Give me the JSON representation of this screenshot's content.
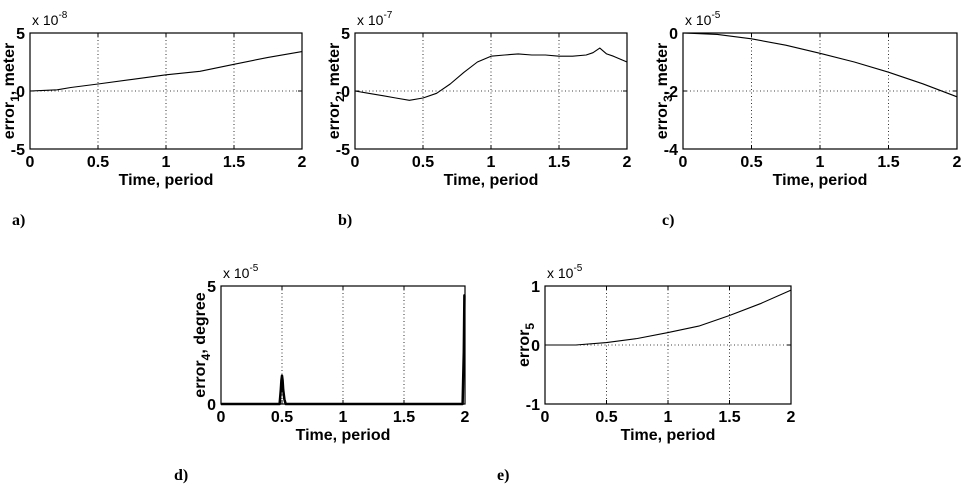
{
  "figure": {
    "panel_tags": [
      "a)",
      "b)",
      "c)",
      "d)",
      "e)"
    ]
  },
  "chart_data": [
    {
      "id": "a",
      "type": "line",
      "xlabel": "Time, period",
      "ylabel": "error",
      "ylabel_sub": "1",
      "ylabel_rest": ", meter",
      "multiplier_base": "x 10",
      "multiplier_exp": "-8",
      "xlim": [
        0,
        2
      ],
      "ylim": [
        -5,
        5
      ],
      "xticks": [
        0,
        0.5,
        1,
        1.5,
        2
      ],
      "xtick_labels": [
        "0",
        "0.5",
        "1",
        "1.5",
        "2"
      ],
      "yticks": [
        -5,
        0,
        5
      ],
      "ytick_labels": [
        "-5",
        "0",
        "5"
      ],
      "grid": true,
      "series": [
        {
          "x": [
            0,
            0.1,
            0.2,
            0.3,
            0.5,
            0.75,
            1.0,
            1.25,
            1.5,
            1.75,
            2.0
          ],
          "y": [
            0,
            0.05,
            0.1,
            0.3,
            0.6,
            1.0,
            1.4,
            1.7,
            2.3,
            2.9,
            3.4
          ]
        }
      ]
    },
    {
      "id": "b",
      "type": "line",
      "xlabel": "Time, period",
      "ylabel": "error",
      "ylabel_sub": "2",
      "ylabel_rest": ", meter",
      "multiplier_base": "x 10",
      "multiplier_exp": "-7",
      "xlim": [
        0,
        2
      ],
      "ylim": [
        -5,
        5
      ],
      "xticks": [
        0,
        0.5,
        1,
        1.5,
        2
      ],
      "xtick_labels": [
        "0",
        "0.5",
        "1",
        "1.5",
        "2"
      ],
      "yticks": [
        -5,
        0,
        5
      ],
      "ytick_labels": [
        "-5",
        "0",
        "5"
      ],
      "grid": true,
      "series": [
        {
          "x": [
            0,
            0.1,
            0.2,
            0.3,
            0.4,
            0.5,
            0.6,
            0.7,
            0.8,
            0.9,
            1.0,
            1.1,
            1.2,
            1.3,
            1.4,
            1.5,
            1.6,
            1.7,
            1.75,
            1.8,
            1.85,
            1.9,
            2.0
          ],
          "y": [
            0,
            -0.2,
            -0.4,
            -0.6,
            -0.8,
            -0.6,
            -0.2,
            0.6,
            1.6,
            2.5,
            3.0,
            3.1,
            3.2,
            3.1,
            3.1,
            3.0,
            3.0,
            3.1,
            3.3,
            3.7,
            3.2,
            3.0,
            2.5
          ]
        }
      ]
    },
    {
      "id": "c",
      "type": "line",
      "xlabel": "Time, period",
      "ylabel": "error",
      "ylabel_sub": "3",
      "ylabel_rest": ", meter",
      "multiplier_base": "x 10",
      "multiplier_exp": "-5",
      "xlim": [
        0,
        2
      ],
      "ylim": [
        -4,
        0
      ],
      "xticks": [
        0,
        0.5,
        1,
        1.5,
        2
      ],
      "xtick_labels": [
        "0",
        "0.5",
        "1",
        "1.5",
        "2"
      ],
      "yticks": [
        -4,
        -2,
        0
      ],
      "ytick_labels": [
        "-4",
        "-2",
        "0"
      ],
      "grid": true,
      "series": [
        {
          "x": [
            0,
            0.25,
            0.5,
            0.75,
            1.0,
            1.25,
            1.5,
            1.75,
            2.0
          ],
          "y": [
            0,
            -0.05,
            -0.2,
            -0.42,
            -0.7,
            -1.0,
            -1.35,
            -1.75,
            -2.2
          ]
        }
      ]
    },
    {
      "id": "d",
      "type": "line",
      "xlabel": "Time, period",
      "ylabel": "error",
      "ylabel_sub": "4",
      "ylabel_rest": ", degree",
      "multiplier_base": "x 10",
      "multiplier_exp": "-5",
      "xlim": [
        0,
        2
      ],
      "ylim": [
        0,
        5
      ],
      "xticks": [
        0,
        0.5,
        1,
        1.5,
        2
      ],
      "xtick_labels": [
        "0",
        "0.5",
        "1",
        "1.5",
        "2"
      ],
      "yticks": [
        0,
        5
      ],
      "ytick_labels": [
        "0",
        "5"
      ],
      "grid": true,
      "series": [
        {
          "x": [
            0,
            0.48,
            0.49,
            0.495,
            0.5,
            0.505,
            0.51,
            0.52,
            0.53,
            1.98,
            1.99,
            1.995,
            2.0
          ],
          "y": [
            0,
            0,
            0.6,
            1.0,
            1.2,
            1.0,
            0.6,
            0.2,
            0,
            0,
            2.2,
            4.6,
            4.6
          ]
        }
      ]
    },
    {
      "id": "e",
      "type": "line",
      "xlabel": "Time, period",
      "ylabel": "error",
      "ylabel_sub": "5",
      "ylabel_rest": "",
      "multiplier_base": "x 10",
      "multiplier_exp": "-5",
      "xlim": [
        0,
        2
      ],
      "ylim": [
        -1,
        1
      ],
      "xticks": [
        0,
        0.5,
        1,
        1.5,
        2
      ],
      "xtick_labels": [
        "0",
        "0.5",
        "1",
        "1.5",
        "2"
      ],
      "yticks": [
        -1,
        0,
        1
      ],
      "ytick_labels": [
        "-1",
        "0",
        "1"
      ],
      "grid": true,
      "series": [
        {
          "x": [
            0,
            0.25,
            0.5,
            0.75,
            1.0,
            1.25,
            1.5,
            1.75,
            2.0
          ],
          "y": [
            0,
            0,
            0.04,
            0.11,
            0.21,
            0.32,
            0.5,
            0.7,
            0.93
          ]
        }
      ]
    }
  ]
}
